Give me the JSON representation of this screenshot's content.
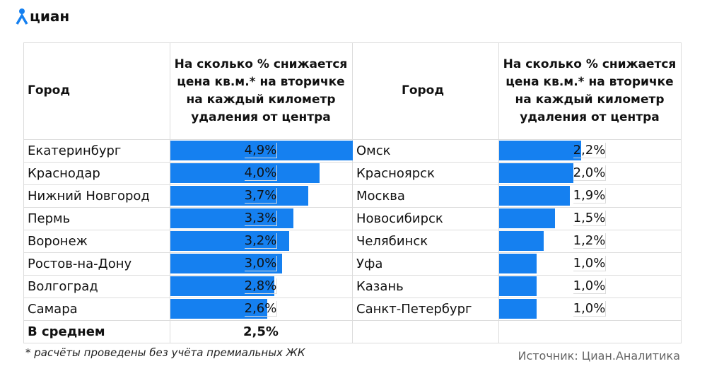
{
  "logo": "циан",
  "tables": [
    {
      "header": [
        "Город",
        "На сколько % снижается цена кв.м.* на вторичке на каждый километр удаления от центра"
      ],
      "categories": [
        "Екатеринбург",
        "Краснодар",
        "Нижний Новгород",
        "Пермь",
        "Воронеж",
        "Ростов-на-Дону",
        "Волгоград",
        "Самара"
      ],
      "values": [
        4.9,
        4.0,
        3.7,
        3.3,
        3.2,
        3.0,
        2.8,
        2.6
      ],
      "value_labels": [
        "4,9%",
        "4,0%",
        "3,7%",
        "3,3%",
        "3,2%",
        "3,0%",
        "2,8%",
        "2,6%"
      ]
    },
    {
      "header": [
        "Город",
        "На сколько % снижается цена кв.м.* на вторичке на каждый километр удаления от центра"
      ],
      "categories": [
        "Омск",
        "Красноярск",
        "Москва",
        "Новосибирск",
        "Челябинск",
        "Уфа",
        "Казань",
        "Санкт-Петербург"
      ],
      "values": [
        2.2,
        2.0,
        1.9,
        1.5,
        1.2,
        1.0,
        1.0,
        1.0
      ],
      "value_labels": [
        "2,2%",
        "2,0%",
        "1,9%",
        "1,5%",
        "1,2%",
        "1,0%",
        "1,0%",
        "1,0%"
      ]
    }
  ],
  "average": {
    "label": "В среднем",
    "value_label": "2,5%"
  },
  "color": "#1580f0",
  "footnote": "* расчёты проведены без учёта премиальных ЖК",
  "source": "Источник: Циан.Аналитика"
}
